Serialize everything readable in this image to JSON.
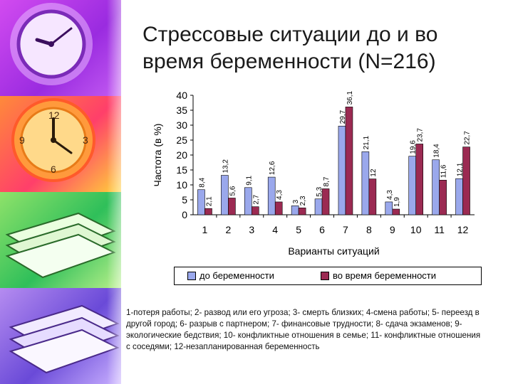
{
  "slide": {
    "title_line1": "Стрессовые ситуации до и во",
    "title_line2": "время беременности (N=216)",
    "caption": "1-потеря работы; 2- развод или его угроза; 3- смерть близких; 4-смена работы;  5- переезд в другой город; 6- разрыв с партнером; 7- финансовые трудности; 8- сдача экзаменов; 9- экологические бедствия; 10- конфликтные отношения в семье;    11- конфликтные отношения с соседями; 12-незапланированная беременность"
  },
  "chart_data": {
    "type": "bar",
    "title": "",
    "xlabel": "Варианты ситуаций",
    "ylabel": "Частота (в %)",
    "ylim": [
      0,
      40
    ],
    "yticks": [
      0,
      5,
      10,
      15,
      20,
      25,
      30,
      35,
      40
    ],
    "grid": false,
    "legend_position": "bottom",
    "categories": [
      "1",
      "2",
      "3",
      "4",
      "5",
      "6",
      "7",
      "8",
      "9",
      "10",
      "11",
      "12"
    ],
    "series": [
      {
        "name": "до беременности",
        "color": "#9aa8ec",
        "values": [
          8.4,
          13.2,
          9.1,
          12.6,
          3,
          5.3,
          29.7,
          21.1,
          4.3,
          19.6,
          18.4,
          12.1
        ],
        "labels": [
          "8,4",
          "13,2",
          "9,1",
          "12,6",
          "3",
          "5,3",
          "29,7",
          "21,1",
          "4,3",
          "19,6",
          "18,4",
          "12,1"
        ]
      },
      {
        "name": "во время беременности",
        "color": "#9b2a52",
        "values": [
          2.1,
          5.6,
          2.7,
          4.3,
          2.3,
          8.7,
          36.1,
          12,
          1.9,
          23.7,
          11.6,
          22.7
        ],
        "labels": [
          "2,1",
          "5,6",
          "2,7",
          "4,3",
          "2,3",
          "8,7",
          "36,1",
          "12",
          "1,9",
          "23,7",
          "11,6",
          "22,7"
        ]
      }
    ]
  }
}
